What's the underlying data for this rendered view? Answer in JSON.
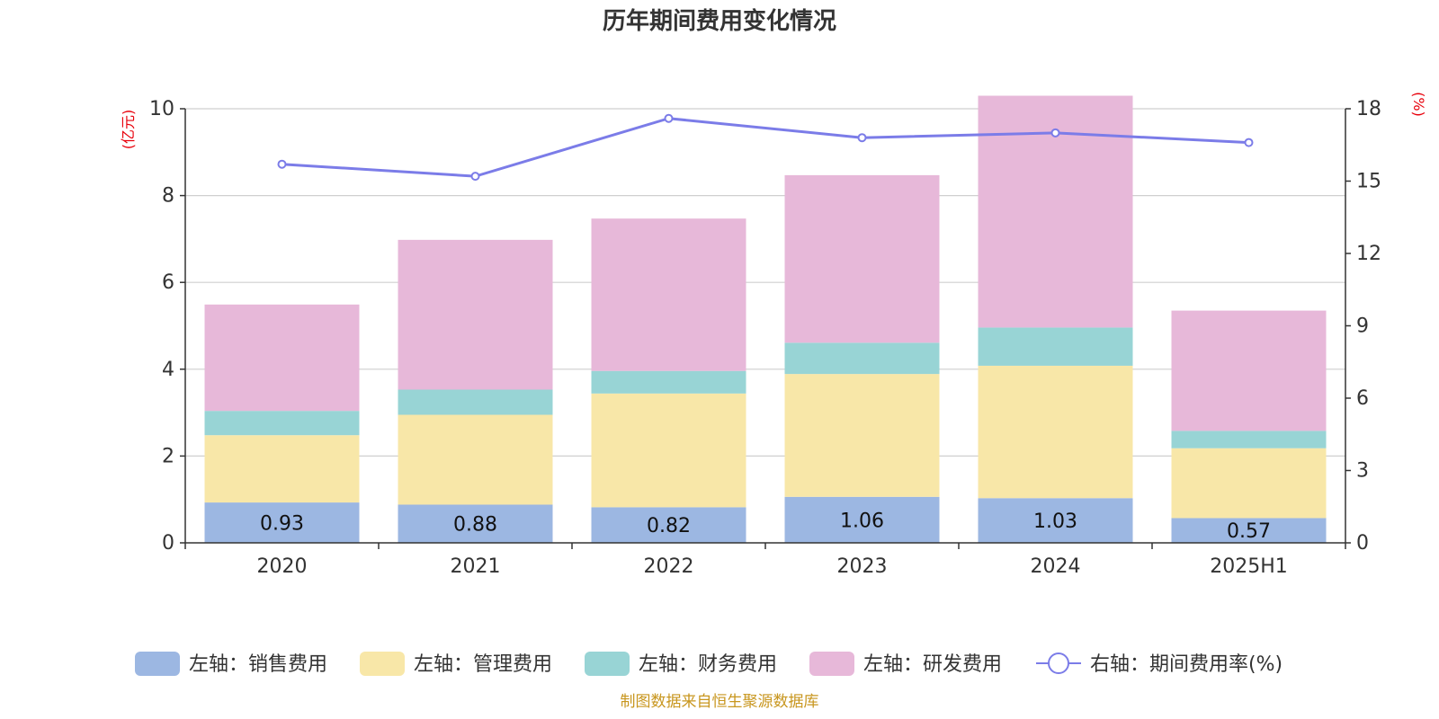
{
  "chart_data": {
    "type": "bar",
    "title": "历年期间费用变化情况",
    "categories": [
      "2020",
      "2021",
      "2022",
      "2023",
      "2024",
      "2025H1"
    ],
    "series": [
      {
        "name": "左轴：销售费用",
        "axis": "left",
        "type": "bar",
        "color": "#9cb7e2",
        "values": [
          0.93,
          0.88,
          0.82,
          1.06,
          1.03,
          0.57
        ],
        "labels": [
          "0.93",
          "0.88",
          "0.82",
          "1.06",
          "1.03",
          "0.57"
        ]
      },
      {
        "name": "左轴：管理费用",
        "axis": "left",
        "type": "bar",
        "color": "#f8e7a8",
        "values": [
          1.55,
          2.07,
          2.62,
          2.83,
          3.05,
          1.61
        ]
      },
      {
        "name": "左轴：财务费用",
        "axis": "left",
        "type": "bar",
        "color": "#98d4d5",
        "values": [
          0.56,
          0.58,
          0.52,
          0.72,
          0.88,
          0.4
        ]
      },
      {
        "name": "左轴：研发费用",
        "axis": "left",
        "type": "bar",
        "color": "#e7b8d9",
        "values": [
          2.45,
          3.45,
          3.51,
          3.86,
          5.34,
          2.77
        ]
      },
      {
        "name": "右轴：期间费用率(%)",
        "axis": "right",
        "type": "line",
        "color": "#7b7ce8",
        "values": [
          15.7,
          15.2,
          17.6,
          16.8,
          17.0,
          16.6
        ]
      }
    ],
    "y_left": {
      "label": "(亿元)",
      "min": 0,
      "max": 10,
      "ticks": [
        0,
        2,
        4,
        6,
        8,
        10
      ]
    },
    "y_right": {
      "label": "(%)",
      "min": 0,
      "max": 18,
      "ticks": [
        0,
        3,
        6,
        9,
        12,
        15,
        18
      ]
    },
    "grid": true,
    "legend_position": "bottom"
  },
  "source": "制图数据来自恒生聚源数据库"
}
